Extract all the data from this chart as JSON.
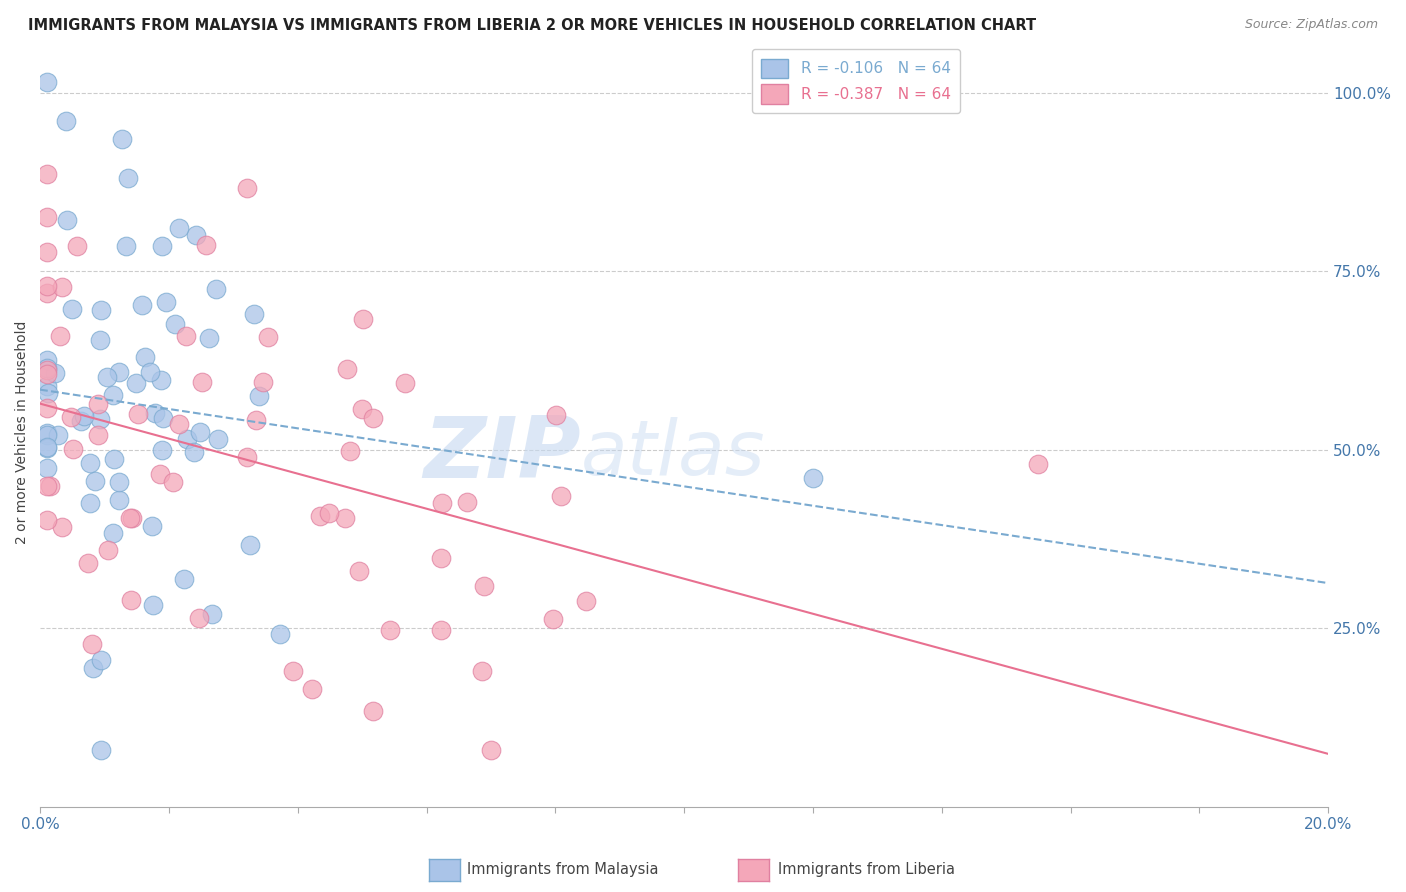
{
  "title": "IMMIGRANTS FROM MALAYSIA VS IMMIGRANTS FROM LIBERIA 2 OR MORE VEHICLES IN HOUSEHOLD CORRELATION CHART",
  "source": "Source: ZipAtlas.com",
  "ylabel_left": "2 or more Vehicles in Household",
  "xlim": [
    0.0,
    0.2
  ],
  "ylim": [
    0.0,
    1.05
  ],
  "right_yticks": [
    1.0,
    0.75,
    0.5,
    0.25
  ],
  "right_yticklabels": [
    "100.0%",
    "75.0%",
    "50.0%",
    "25.0%"
  ],
  "malaysia_color": "#aac4e8",
  "liberia_color": "#f4a7b9",
  "malaysia_edge_color": "#7aaad0",
  "liberia_edge_color": "#e080a0",
  "malaysia_line_color": "#7aaad0",
  "liberia_line_color": "#e87090",
  "R_malaysia": -0.106,
  "R_liberia": -0.387,
  "N": 64,
  "background_color": "#ffffff",
  "grid_color": "#cccccc",
  "watermark_zip": "ZIP",
  "watermark_atlas": "atlas",
  "watermark_color_zip": "#c5d8f0",
  "watermark_color_atlas": "#c5d8f0",
  "title_fontsize": 10.5,
  "source_fontsize": 9,
  "legend_fontsize": 11,
  "axis_label_fontsize": 10,
  "tick_fontsize": 11
}
